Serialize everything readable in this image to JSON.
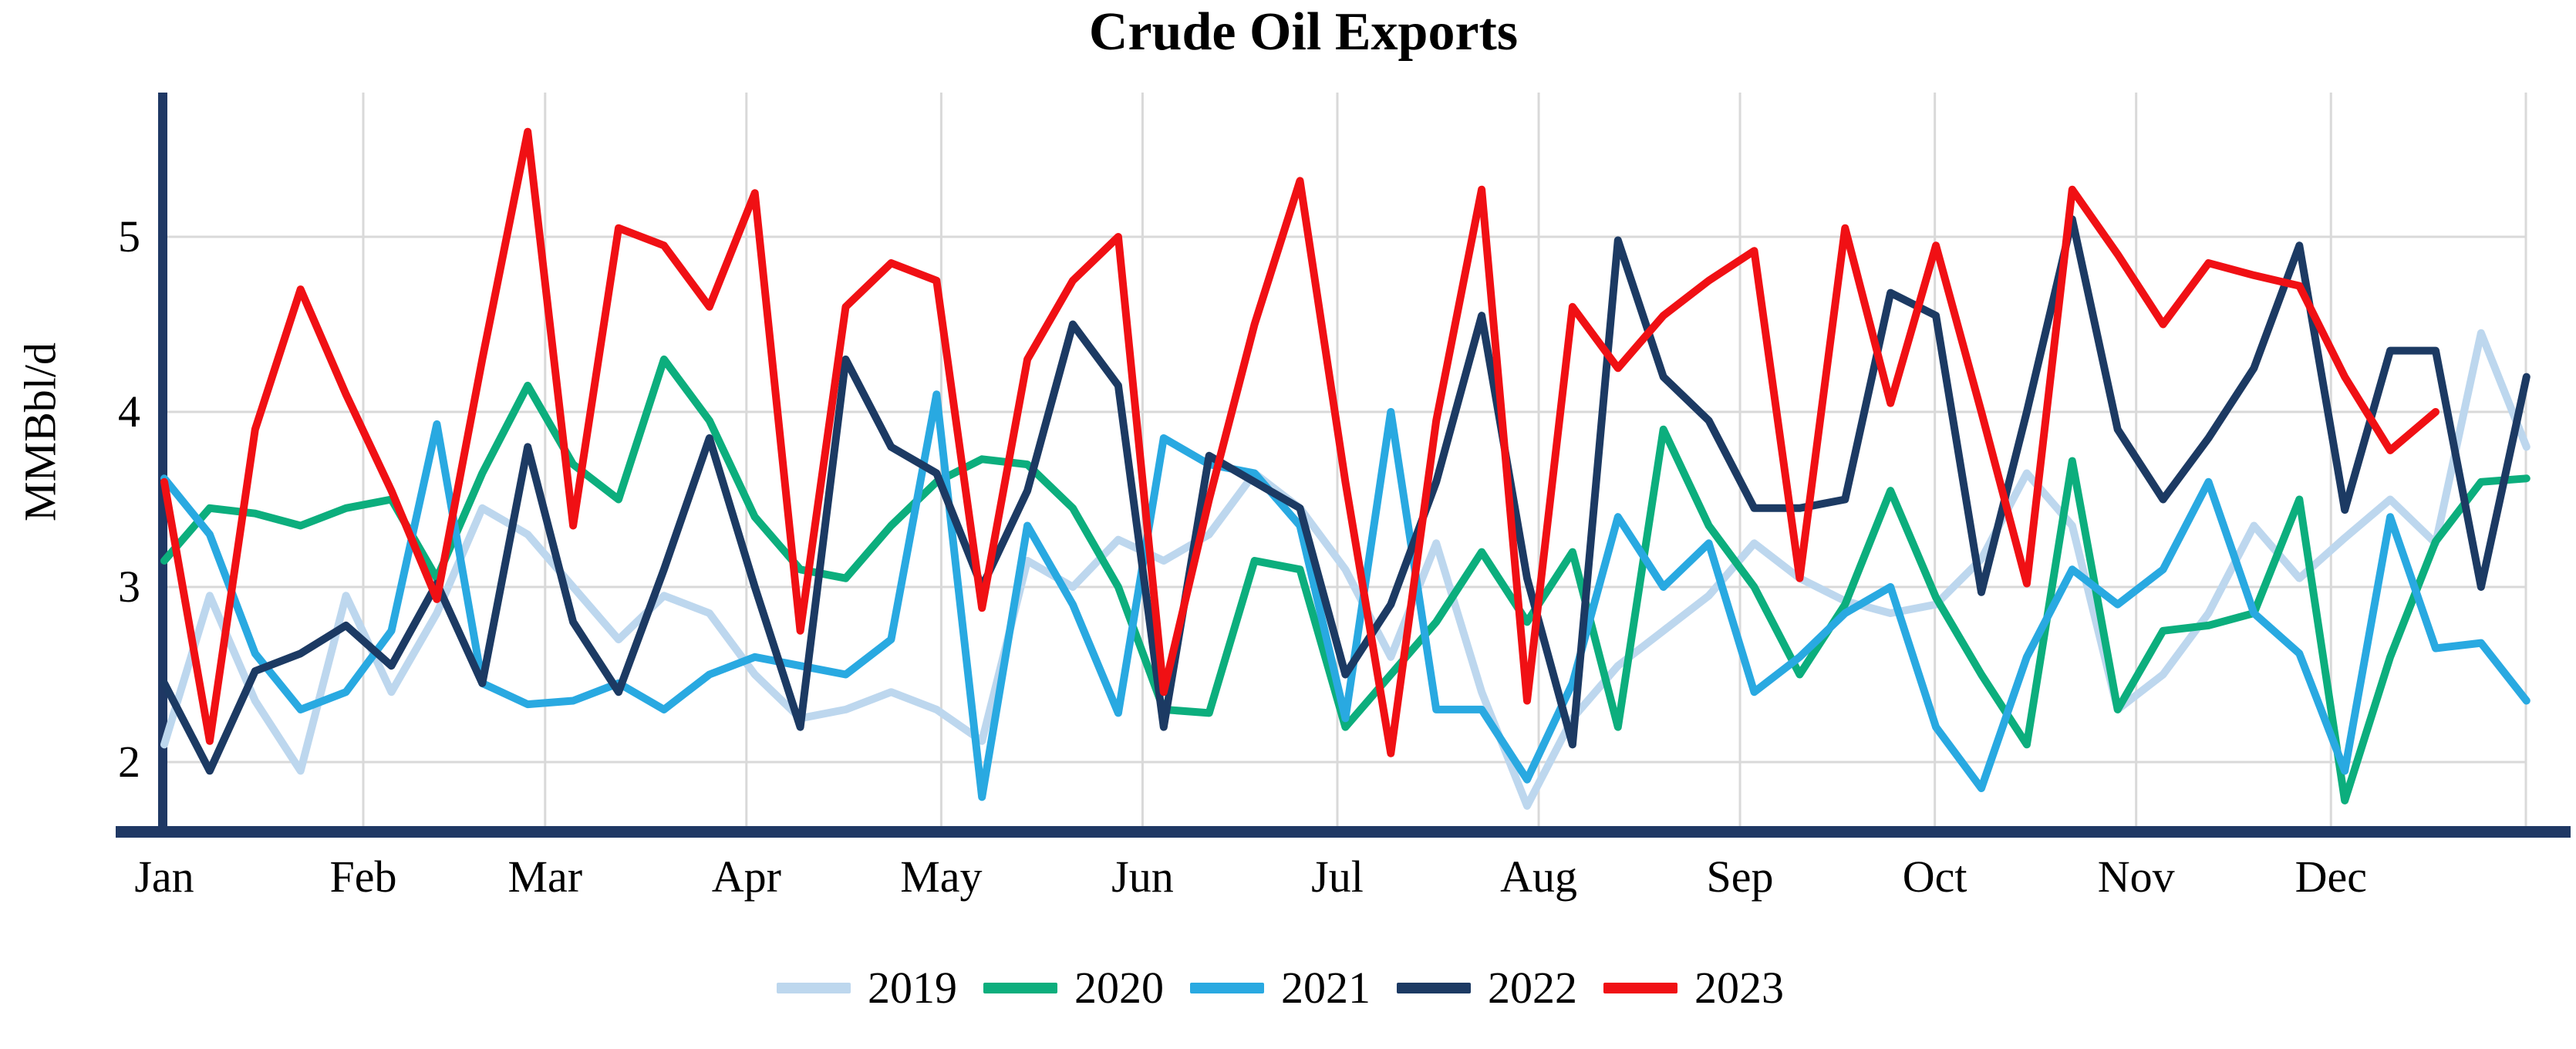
{
  "title": "Crude Oil Exports",
  "y_axis": {
    "label": "MMBbl/d",
    "tick_labels": [
      "5",
      "4",
      "3",
      "2"
    ],
    "tick_values": [
      5,
      4,
      3,
      2
    ]
  },
  "x_axis": {
    "month_labels": [
      "Jan",
      "Feb",
      "Mar",
      "Apr",
      "May",
      "Jun",
      "Jul",
      "Aug",
      "Sep",
      "Oct",
      "Nov",
      "Dec"
    ],
    "month_start_days": [
      0,
      31,
      59,
      90,
      120,
      151,
      181,
      212,
      243,
      273,
      304,
      334
    ]
  },
  "legend": {
    "position": "bottom",
    "items": [
      {
        "label": "2019",
        "color": "#BDD7EE"
      },
      {
        "label": "2020",
        "color": "#0CAE7D"
      },
      {
        "label": "2021",
        "color": "#29A9E1"
      },
      {
        "label": "2022",
        "color": "#1C3A63"
      },
      {
        "label": "2023",
        "color": "#F01014"
      }
    ]
  },
  "colors": {
    "grid": "#D9D9D9",
    "axis": "#1F3864",
    "title_text": "#000000"
  },
  "chart_data": {
    "type": "line",
    "title": "Crude Oil Exports",
    "xlabel": "",
    "ylabel": "MMBbl/d",
    "x_unit": "week_of_year",
    "x": [
      1,
      2,
      3,
      4,
      5,
      6,
      7,
      8,
      9,
      10,
      11,
      12,
      13,
      14,
      15,
      16,
      17,
      18,
      19,
      20,
      21,
      22,
      23,
      24,
      25,
      26,
      27,
      28,
      29,
      30,
      31,
      32,
      33,
      34,
      35,
      36,
      37,
      38,
      39,
      40,
      41,
      42,
      43,
      44,
      45,
      46,
      47,
      48,
      49,
      50,
      51,
      52,
      53
    ],
    "ylim": [
      1.6,
      5.8
    ],
    "yticks": [
      2,
      3,
      4,
      5
    ],
    "grid": "both",
    "legend_position": "bottom",
    "series": [
      {
        "name": "2019",
        "color": "#BDD7EE",
        "values": [
          2.1,
          2.95,
          2.35,
          1.95,
          2.95,
          2.4,
          2.85,
          3.45,
          3.3,
          3.0,
          2.7,
          2.95,
          2.85,
          2.5,
          2.25,
          2.3,
          2.4,
          2.3,
          2.12,
          3.15,
          3.0,
          3.27,
          3.15,
          3.3,
          3.65,
          3.45,
          3.1,
          2.6,
          3.25,
          2.4,
          1.75,
          2.25,
          2.55,
          2.75,
          2.95,
          3.25,
          3.05,
          2.92,
          2.85,
          2.9,
          3.16,
          3.65,
          3.35,
          2.3,
          2.5,
          2.85,
          3.35,
          3.05,
          3.28,
          3.5,
          3.25,
          4.45,
          3.8
        ]
      },
      {
        "name": "2020",
        "color": "#0CAE7D",
        "values": [
          3.15,
          3.45,
          3.42,
          3.35,
          3.45,
          3.5,
          3.05,
          3.65,
          4.15,
          3.7,
          3.5,
          4.3,
          3.95,
          3.4,
          3.1,
          3.05,
          3.35,
          3.6,
          3.73,
          3.7,
          3.45,
          3.0,
          2.3,
          2.28,
          3.15,
          3.1,
          2.2,
          2.5,
          2.8,
          3.2,
          2.8,
          3.2,
          2.2,
          3.9,
          3.35,
          3.0,
          2.5,
          2.9,
          3.55,
          2.94,
          2.5,
          2.1,
          3.72,
          2.3,
          2.75,
          2.78,
          2.85,
          3.5,
          1.78,
          2.6,
          3.26,
          3.6,
          3.62
        ]
      },
      {
        "name": "2021",
        "color": "#29A9E1",
        "values": [
          3.62,
          3.3,
          2.62,
          2.3,
          2.4,
          2.75,
          3.93,
          2.45,
          2.33,
          2.35,
          2.45,
          2.3,
          2.5,
          2.6,
          2.55,
          2.5,
          2.7,
          4.1,
          1.8,
          3.35,
          2.9,
          2.28,
          3.85,
          3.7,
          3.65,
          3.35,
          2.25,
          4.0,
          2.3,
          2.3,
          1.9,
          2.45,
          3.4,
          3.0,
          3.25,
          2.4,
          2.6,
          2.85,
          3.0,
          2.2,
          1.85,
          2.6,
          3.1,
          2.9,
          3.1,
          3.6,
          2.85,
          2.62,
          1.95,
          3.4,
          2.65,
          2.68,
          2.35
        ]
      },
      {
        "name": "2022",
        "color": "#1C3A63",
        "values": [
          2.45,
          1.95,
          2.52,
          2.62,
          2.78,
          2.55,
          3.02,
          2.45,
          3.8,
          2.8,
          2.4,
          3.1,
          3.85,
          3.0,
          2.2,
          4.3,
          3.8,
          3.65,
          3.0,
          3.55,
          4.5,
          4.15,
          2.2,
          3.75,
          3.6,
          3.45,
          2.5,
          2.9,
          3.6,
          4.55,
          3.05,
          2.1,
          4.98,
          4.2,
          3.95,
          3.45,
          3.45,
          3.5,
          4.68,
          4.55,
          2.97,
          4.0,
          5.1,
          3.9,
          3.5,
          3.85,
          4.25,
          4.95,
          3.44,
          4.35,
          4.35,
          3.0,
          4.2
        ]
      },
      {
        "name": "2023",
        "color": "#F01014",
        "values": [
          3.6,
          2.12,
          3.9,
          4.7,
          4.1,
          3.55,
          2.93,
          4.3,
          5.6,
          3.35,
          5.05,
          4.95,
          4.6,
          5.25,
          2.75,
          4.6,
          4.85,
          4.75,
          2.88,
          4.3,
          4.75,
          5.0,
          2.4,
          3.5,
          4.5,
          5.32,
          3.6,
          2.05,
          3.95,
          5.27,
          2.35,
          4.6,
          4.25,
          4.55,
          4.75,
          4.92,
          3.05,
          5.05,
          4.05,
          4.95,
          4.0,
          3.02,
          5.27,
          4.9,
          4.5,
          4.85,
          4.78,
          4.72,
          4.2,
          3.78,
          4.0,
          null,
          null
        ]
      }
    ]
  }
}
